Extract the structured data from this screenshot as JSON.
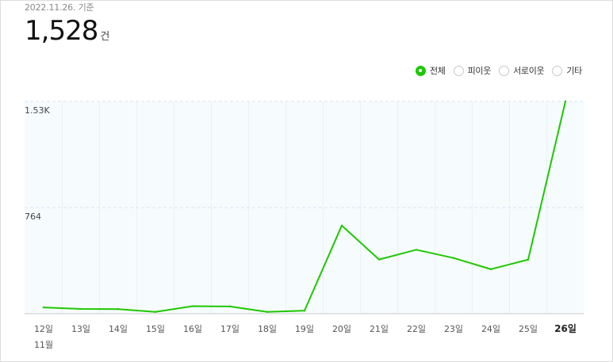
{
  "header": {
    "as_of": "2022.11.26. 기준",
    "total_value": "1,528",
    "total_unit": "건"
  },
  "legend": {
    "options": [
      {
        "label": "전체",
        "selected": true
      },
      {
        "label": "피이웃",
        "selected": false
      },
      {
        "label": "서로이웃",
        "selected": false
      },
      {
        "label": "기타",
        "selected": false
      }
    ]
  },
  "colors": {
    "line": "#1ec800",
    "plot_bg": "#f6fbfe",
    "gridline": "#d6e6f0"
  },
  "chart_data": {
    "type": "line",
    "categories": [
      "12일",
      "13일",
      "14일",
      "15일",
      "16일",
      "17일",
      "18일",
      "19일",
      "20일",
      "21일",
      "22일",
      "23일",
      "24일",
      "25일",
      "26일"
    ],
    "month_label": "11월",
    "highlight_category": "26일",
    "values": [
      45,
      34,
      33,
      13,
      54,
      52,
      13,
      22,
      634,
      390,
      460,
      401,
      320,
      389,
      1528
    ],
    "ytick_labels": [
      "1.53K",
      "764"
    ],
    "ytick_values": [
      1528,
      764
    ],
    "ylim": [
      0,
      1528
    ],
    "grid": true
  }
}
